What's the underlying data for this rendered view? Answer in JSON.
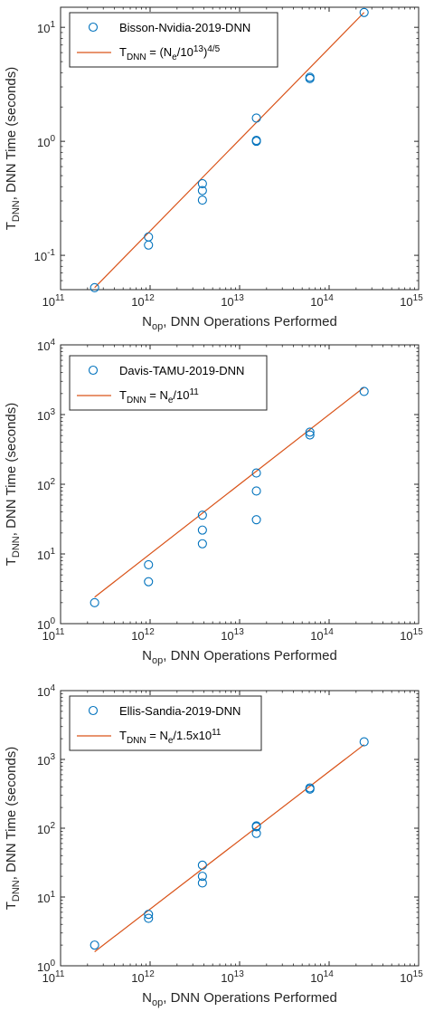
{
  "colors": {
    "marker": "#0072BD",
    "fit_line": "#D95319",
    "axes": "#262626"
  },
  "chart_data": [
    {
      "type": "scatter",
      "xscale": "log",
      "yscale": "log",
      "xlim": [
        100000000000.0,
        1000000000000000.0
      ],
      "ylim": [
        0.05,
        15
      ],
      "x_ticks": [
        100000000000.0,
        1000000000000.0,
        10000000000000.0,
        100000000000000.0,
        1000000000000000.0
      ],
      "y_ticks": [
        0.1,
        1,
        10
      ],
      "x_tick_labels": [
        {
          "base": "10",
          "exp": "11"
        },
        {
          "base": "10",
          "exp": "12"
        },
        {
          "base": "10",
          "exp": "13"
        },
        {
          "base": "10",
          "exp": "14"
        },
        {
          "base": "10",
          "exp": "15"
        }
      ],
      "y_tick_labels": [
        {
          "base": "10",
          "exp": "-1"
        },
        {
          "base": "10",
          "exp": "0"
        },
        {
          "base": "10",
          "exp": "1"
        }
      ],
      "xlabel": {
        "main": "N",
        "sub": "op",
        "rest": ", DNN Operations Performed"
      },
      "ylabel": {
        "main": "T",
        "sub": "DNN",
        "rest": ", DNN Time (seconds)"
      },
      "legend": {
        "placement": "top-left",
        "marker_label": "Bisson-Nvidia-2019-DNN",
        "line_label": {
          "parts": [
            {
              "t": "T",
              "s": "normal"
            },
            {
              "t": "DNN",
              "s": "sub"
            },
            {
              "t": " = (N",
              "s": "normal"
            },
            {
              "t": "e",
              "s": "sub"
            },
            {
              "t": "/10",
              "s": "normal"
            },
            {
              "t": "13",
              "s": "sup"
            },
            {
              "t": ")",
              "s": "normal"
            },
            {
              "t": "4/5",
              "s": "sup"
            }
          ]
        }
      },
      "series": [
        {
          "kind": "marker",
          "points": [
            [
              240000000000.0,
              0.052
            ],
            [
              960000000000.0,
              0.145
            ],
            [
              960000000000.0,
              0.123
            ],
            [
              3840000000000.0,
              0.425
            ],
            [
              3840000000000.0,
              0.37
            ],
            [
              3840000000000.0,
              0.305
            ],
            [
              15400000000000.0,
              1.6
            ],
            [
              15400000000000.0,
              1.02
            ],
            [
              15400000000000.0,
              1.0
            ],
            [
              61000000000000.0,
              3.65
            ],
            [
              61000000000000.0,
              3.55
            ],
            [
              246000000000000.0,
              13.5
            ]
          ]
        },
        {
          "kind": "line",
          "points": [
            [
              240000000000.0,
              0.052
            ],
            [
              246000000000000.0,
              13.5
            ]
          ]
        }
      ]
    },
    {
      "type": "scatter",
      "xscale": "log",
      "yscale": "log",
      "xlim": [
        100000000000.0,
        1000000000000000.0
      ],
      "ylim": [
        1,
        10000
      ],
      "x_ticks": [
        100000000000.0,
        1000000000000.0,
        10000000000000.0,
        100000000000000.0,
        1000000000000000.0
      ],
      "y_ticks": [
        1,
        10,
        100,
        1000,
        10000
      ],
      "x_tick_labels": [
        {
          "base": "10",
          "exp": "11"
        },
        {
          "base": "10",
          "exp": "12"
        },
        {
          "base": "10",
          "exp": "13"
        },
        {
          "base": "10",
          "exp": "14"
        },
        {
          "base": "10",
          "exp": "15"
        }
      ],
      "y_tick_labels": [
        {
          "base": "10",
          "exp": "0"
        },
        {
          "base": "10",
          "exp": "1"
        },
        {
          "base": "10",
          "exp": "2"
        },
        {
          "base": "10",
          "exp": "3"
        },
        {
          "base": "10",
          "exp": "4"
        }
      ],
      "xlabel": {
        "main": "N",
        "sub": "op",
        "rest": ", DNN Operations Performed"
      },
      "ylabel": {
        "main": "T",
        "sub": "DNN",
        "rest": ", DNN Time (seconds)"
      },
      "legend": {
        "placement": "top-left",
        "marker_label": "Davis-TAMU-2019-DNN",
        "line_label": {
          "parts": [
            {
              "t": "T",
              "s": "normal"
            },
            {
              "t": "DNN",
              "s": "sub"
            },
            {
              "t": " = N",
              "s": "normal"
            },
            {
              "t": "e",
              "s": "sub"
            },
            {
              "t": "/10",
              "s": "normal"
            },
            {
              "t": "11",
              "s": "sup"
            }
          ]
        }
      },
      "series": [
        {
          "kind": "marker",
          "points": [
            [
              240000000000.0,
              2.0
            ],
            [
              960000000000.0,
              7.0
            ],
            [
              960000000000.0,
              4.0
            ],
            [
              3840000000000.0,
              36
            ],
            [
              3840000000000.0,
              22
            ],
            [
              3840000000000.0,
              14
            ],
            [
              15400000000000.0,
              145
            ],
            [
              15400000000000.0,
              80
            ],
            [
              15400000000000.0,
              31
            ],
            [
              61000000000000.0,
              560
            ],
            [
              61000000000000.0,
              510
            ],
            [
              246000000000000.0,
              2150
            ]
          ]
        },
        {
          "kind": "line",
          "points": [
            [
              240000000000.0,
              2.4
            ],
            [
              246000000000000.0,
              2460
            ]
          ]
        }
      ]
    },
    {
      "type": "scatter",
      "xscale": "log",
      "yscale": "log",
      "xlim": [
        100000000000.0,
        1000000000000000.0
      ],
      "ylim": [
        1,
        10000
      ],
      "x_ticks": [
        100000000000.0,
        1000000000000.0,
        10000000000000.0,
        100000000000000.0,
        1000000000000000.0
      ],
      "y_ticks": [
        1,
        10,
        100,
        1000,
        10000
      ],
      "x_tick_labels": [
        {
          "base": "10",
          "exp": "11"
        },
        {
          "base": "10",
          "exp": "12"
        },
        {
          "base": "10",
          "exp": "13"
        },
        {
          "base": "10",
          "exp": "14"
        },
        {
          "base": "10",
          "exp": "15"
        }
      ],
      "y_tick_labels": [
        {
          "base": "10",
          "exp": "0"
        },
        {
          "base": "10",
          "exp": "1"
        },
        {
          "base": "10",
          "exp": "2"
        },
        {
          "base": "10",
          "exp": "3"
        },
        {
          "base": "10",
          "exp": "4"
        }
      ],
      "xlabel": {
        "main": "N",
        "sub": "op",
        "rest": ", DNN Operations Performed"
      },
      "ylabel": {
        "main": "T",
        "sub": "DNN",
        "rest": ", DNN Time (seconds)"
      },
      "legend": {
        "placement": "top-left",
        "marker_label": "Ellis-Sandia-2019-DNN",
        "line_label": {
          "parts": [
            {
              "t": "T",
              "s": "normal"
            },
            {
              "t": "DNN",
              "s": "sub"
            },
            {
              "t": " = N",
              "s": "normal"
            },
            {
              "t": "e",
              "s": "sub"
            },
            {
              "t": "/1.5x10",
              "s": "normal"
            },
            {
              "t": "11",
              "s": "sup"
            }
          ]
        }
      },
      "series": [
        {
          "kind": "marker",
          "points": [
            [
              240000000000.0,
              2.0
            ],
            [
              960000000000.0,
              5.6
            ],
            [
              960000000000.0,
              4.9
            ],
            [
              3840000000000.0,
              29
            ],
            [
              3840000000000.0,
              20
            ],
            [
              3840000000000.0,
              16
            ],
            [
              15400000000000.0,
              108
            ],
            [
              15400000000000.0,
              105
            ],
            [
              15400000000000.0,
              84
            ],
            [
              61000000000000.0,
              385
            ],
            [
              61000000000000.0,
              370
            ],
            [
              246000000000000.0,
              1800
            ]
          ]
        },
        {
          "kind": "line",
          "points": [
            [
              240000000000.0,
              1.6
            ],
            [
              246000000000000.0,
              1640
            ]
          ]
        }
      ]
    }
  ]
}
